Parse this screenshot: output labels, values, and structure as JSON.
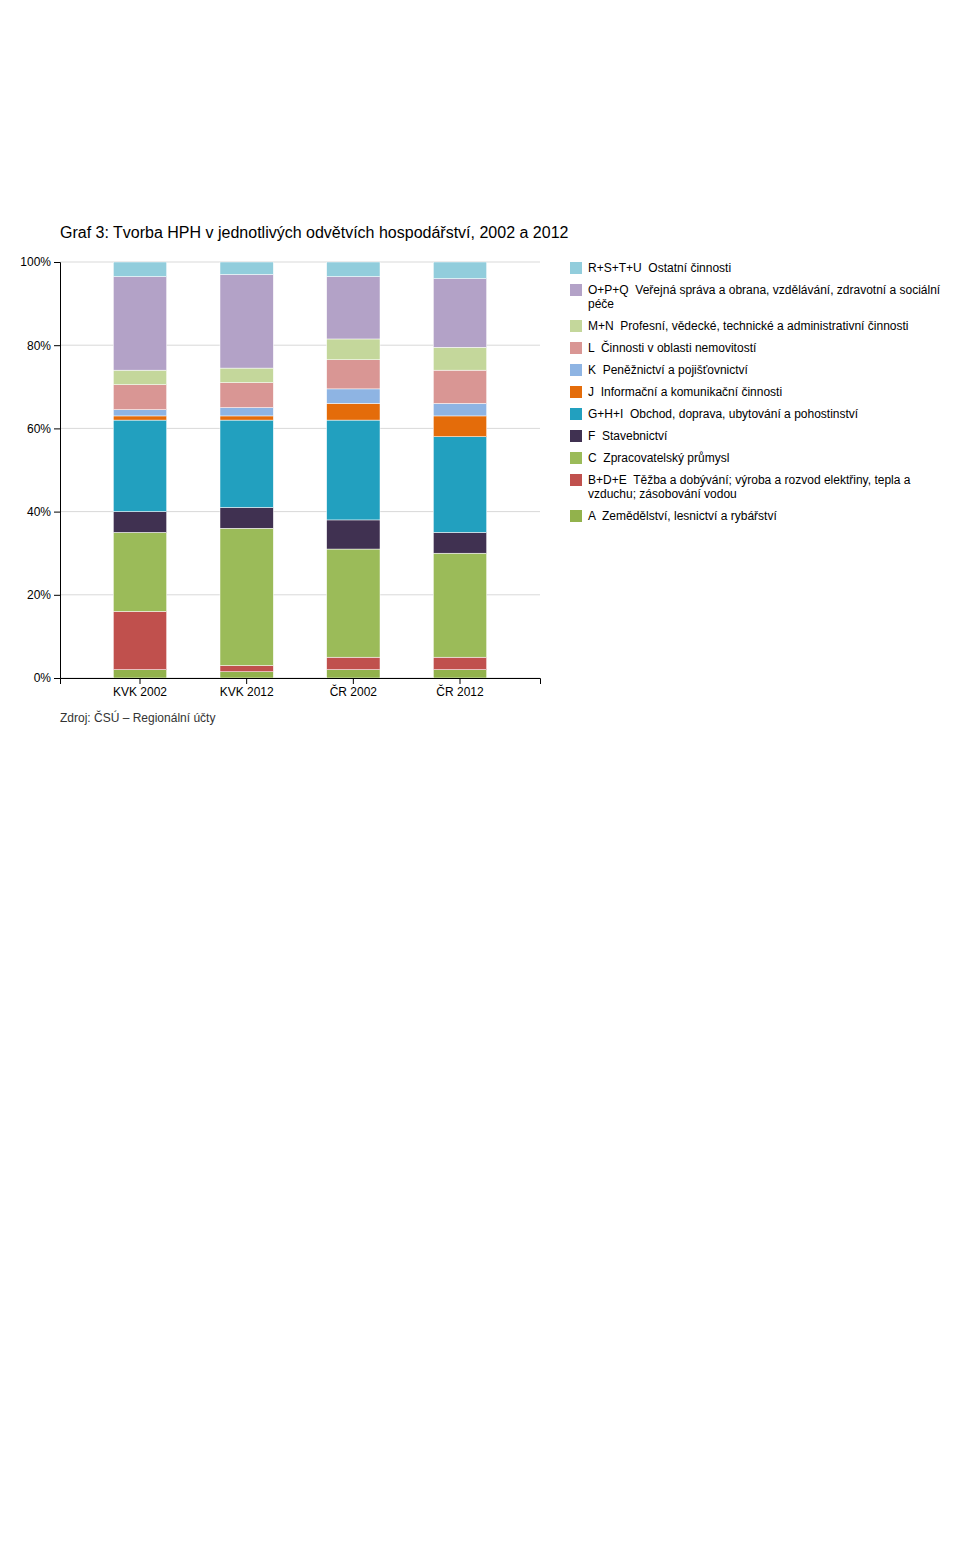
{
  "chart_data": {
    "type": "bar",
    "stacked": true,
    "title": "Graf 3: Tvorba HPH v jednotlivých odvětvích hospodářství, 2002 a 2012",
    "categories": [
      "KVK 2002",
      "KVK 2012",
      "ČR 2002",
      "ČR 2012"
    ],
    "series": [
      {
        "name": "A  Zemědělství, lesnictví a rybářství",
        "color": "#92B24C",
        "values": [
          2.0,
          1.5,
          2.0,
          2.0
        ]
      },
      {
        "name": "B+D+E  Těžba a dobývání; výroba a rozvod elektřiny, tepla a vzduchu; zásobování vodou",
        "color": "#C0504D",
        "values": [
          14.0,
          1.5,
          3.0,
          3.0
        ]
      },
      {
        "name": "C  Zpracovatelský průmysl",
        "color": "#9BBB59",
        "values": [
          19.0,
          33.0,
          26.0,
          25.0
        ]
      },
      {
        "name": "F  Stavebnictví",
        "color": "#403151",
        "values": [
          5.0,
          5.0,
          7.0,
          5.0
        ]
      },
      {
        "name": "G+H+I  Obchod, doprava, ubytování a pohostinství",
        "color": "#22A0BF",
        "values": [
          22.0,
          21.0,
          24.0,
          23.0
        ]
      },
      {
        "name": "J  Informační a komunikační činnosti",
        "color": "#E46C0A",
        "values": [
          1.0,
          1.0,
          4.0,
          5.0
        ]
      },
      {
        "name": "K  Peněžnictví a pojišťovnictví",
        "color": "#8EB4E3",
        "values": [
          1.5,
          2.0,
          3.5,
          3.0
        ]
      },
      {
        "name": "L  Činnosti v oblasti nemovitostí",
        "color": "#D99694",
        "values": [
          6.0,
          6.0,
          7.0,
          8.0
        ]
      },
      {
        "name": "M+N  Profesní, vědecké, technické a administrativní činnosti",
        "color": "#C4D79B",
        "values": [
          3.5,
          3.5,
          5.0,
          5.5
        ]
      },
      {
        "name": "O+P+Q  Veřejná správa a obrana, vzdělávání, zdravotní a sociální péče",
        "color": "#B3A2C7",
        "values": [
          22.5,
          22.5,
          15.0,
          16.5
        ]
      },
      {
        "name": "R+S+T+U  Ostatní činnosti",
        "color": "#92CDDC",
        "values": [
          3.5,
          3.0,
          3.5,
          4.0
        ]
      }
    ],
    "ylim": [
      0,
      100
    ],
    "yticks": [
      {
        "value": 0,
        "label": "0%"
      },
      {
        "value": 20,
        "label": "20%"
      },
      {
        "value": 40,
        "label": "40%"
      },
      {
        "value": 60,
        "label": "60%"
      },
      {
        "value": 80,
        "label": "80%"
      },
      {
        "value": 100,
        "label": "100%"
      }
    ],
    "grid": true,
    "legend": "right",
    "annotations": [
      "Zdroj: ČSÚ – Regionální účty"
    ]
  }
}
